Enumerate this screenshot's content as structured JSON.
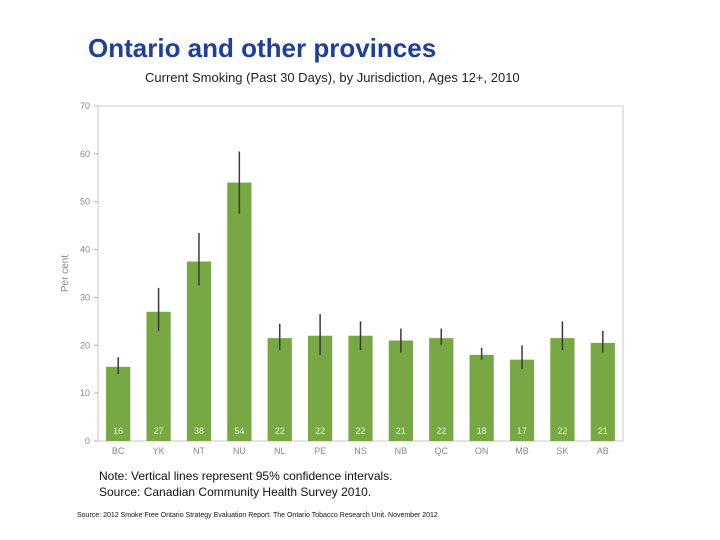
{
  "slide_title": "Ontario and other provinces",
  "notes": {
    "line1": "Note: Vertical lines represent 95% confidence intervals.",
    "line2": "Source: Canadian Community Health Survey 2010."
  },
  "source_footer": "Source: 2012 Smoke Free Ontario Strategy Evaluation Report. The Ontario Tobacco Research Unit. November 2012",
  "colors": {
    "bar": "#77a843",
    "error_bar": "#3a3a3a",
    "title": "#1f3f9e",
    "axis_text": "#888888"
  },
  "chart_data": {
    "type": "bar",
    "title": "Current Smoking (Past 30 Days), by Jurisdiction, Ages 12+, 2010",
    "xlabel": "",
    "ylabel": "Per cent",
    "ylim": [
      0,
      70
    ],
    "yticks": [
      0,
      10,
      20,
      30,
      40,
      50,
      60,
      70
    ],
    "grid": false,
    "categories": [
      "BC",
      "YK",
      "NT",
      "NU",
      "NL",
      "PE",
      "NS",
      "NB",
      "QC",
      "ON",
      "MB",
      "SK",
      "AB"
    ],
    "values": [
      15.5,
      27,
      37.5,
      54,
      21.5,
      22,
      22,
      21,
      21.5,
      18,
      17,
      21.5,
      20.5
    ],
    "data_labels": [
      "16",
      "27",
      "38",
      "54",
      "22",
      "22",
      "22",
      "21",
      "22",
      "18",
      "17",
      "22",
      "21"
    ],
    "ci_low": [
      14,
      23,
      32.5,
      47.5,
      19,
      18,
      19,
      18.5,
      20,
      17,
      15,
      19,
      18.5
    ],
    "ci_high": [
      17.5,
      32,
      43.5,
      60.5,
      24.5,
      26.5,
      25,
      23.5,
      23.5,
      19.5,
      20,
      25,
      23
    ]
  }
}
